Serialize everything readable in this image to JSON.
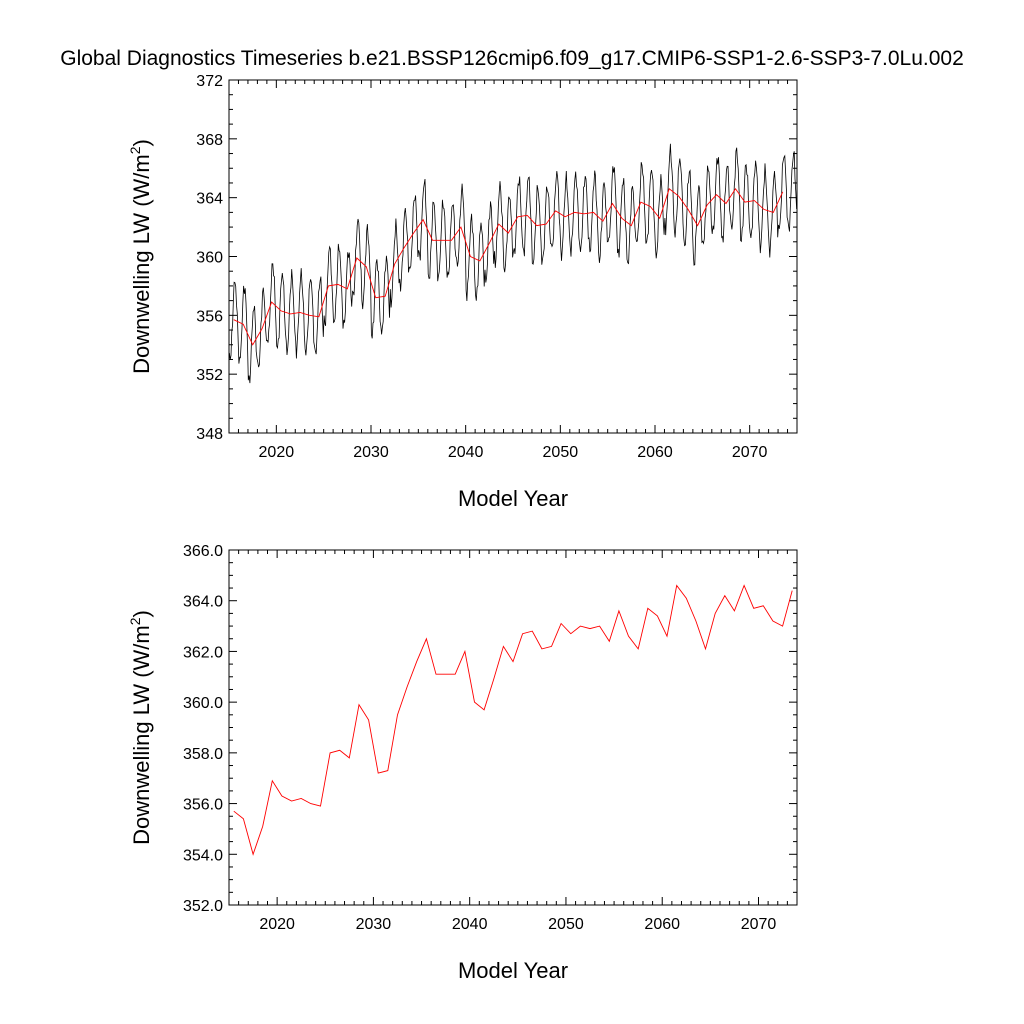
{
  "title": "Global Diagnostics Timeseries b.e21.BSSP126cmip6.f09_g17.CMIP6-SSP1-2.6-SSP3-7.0Lu.002",
  "chart_data": [
    {
      "type": "line",
      "xlabel": "Model Year",
      "ylabel_main": "Downwelling LW (W/m",
      "ylabel_sup": "2",
      "ylabel_close": ")",
      "xlim": [
        2015,
        2075
      ],
      "ylim": [
        348,
        372
      ],
      "xticks": [
        2020,
        2030,
        2040,
        2050,
        2060,
        2070
      ],
      "yticks": [
        "348",
        "352",
        "356",
        "360",
        "364",
        "368",
        "372"
      ],
      "series": [
        {
          "kind": "monthly",
          "color": "#000000",
          "x_start": 2015,
          "x_end": 2075,
          "annual_mean": [
            355.7,
            355.4,
            354.0,
            355.1,
            356.9,
            356.3,
            356.1,
            356.2,
            356.0,
            355.9,
            358.0,
            358.1,
            357.8,
            359.9,
            359.3,
            357.2,
            357.3,
            359.5,
            360.6,
            361.6,
            362.5,
            361.1,
            361.1,
            361.1,
            362.0,
            360.0,
            359.7,
            360.9,
            362.2,
            361.6,
            362.7,
            362.8,
            362.1,
            362.2,
            363.1,
            362.7,
            363.0,
            362.9,
            363.0,
            362.4,
            363.6,
            362.6,
            362.1,
            363.7,
            363.4,
            362.6,
            364.6,
            364.1,
            363.2,
            362.1,
            363.5,
            364.2,
            363.6,
            364.6,
            363.7,
            363.8,
            363.2,
            363.0,
            364.4,
            364.4
          ],
          "amplitude": 2.6
        },
        {
          "kind": "annual",
          "color": "#ff0000",
          "x": [
            2015.5,
            2016.5,
            2017.5,
            2018.5,
            2019.5,
            2020.5,
            2021.5,
            2022.5,
            2023.5,
            2024.5,
            2025.5,
            2026.5,
            2027.5,
            2028.5,
            2029.5,
            2030.5,
            2031.5,
            2032.5,
            2033.5,
            2034.5,
            2035.5,
            2036.5,
            2037.5,
            2038.5,
            2039.5,
            2040.5,
            2041.5,
            2042.5,
            2043.5,
            2044.5,
            2045.5,
            2046.5,
            2047.5,
            2048.5,
            2049.5,
            2050.5,
            2051.5,
            2052.5,
            2053.5,
            2054.5,
            2055.5,
            2056.5,
            2057.5,
            2058.5,
            2059.5,
            2060.5,
            2061.5,
            2062.5,
            2063.5,
            2064.5,
            2065.5,
            2066.5,
            2067.5,
            2068.5,
            2069.5,
            2070.5,
            2071.5,
            2072.5,
            2073.5
          ],
          "y": [
            355.7,
            355.4,
            354.0,
            355.1,
            356.9,
            356.3,
            356.1,
            356.2,
            356.0,
            355.9,
            358.0,
            358.1,
            357.8,
            359.9,
            359.3,
            357.2,
            357.3,
            359.5,
            360.6,
            361.6,
            362.5,
            361.1,
            361.1,
            361.1,
            362.0,
            360.0,
            359.7,
            360.9,
            362.2,
            361.6,
            362.7,
            362.8,
            362.1,
            362.2,
            363.1,
            362.7,
            363.0,
            362.9,
            363.0,
            362.4,
            363.6,
            362.6,
            362.1,
            363.7,
            363.4,
            362.6,
            364.6,
            364.1,
            363.2,
            362.1,
            363.5,
            364.2,
            363.6,
            364.6,
            363.7,
            363.8,
            363.2,
            363.0,
            364.4
          ]
        }
      ]
    },
    {
      "type": "line",
      "xlabel": "Model Year",
      "ylabel_main": "Downwelling LW (W/m",
      "ylabel_sup": "2",
      "ylabel_close": ")",
      "xlim": [
        2015,
        2074
      ],
      "ylim": [
        352,
        366
      ],
      "xticks": [
        2020,
        2030,
        2040,
        2050,
        2060,
        2070
      ],
      "yticks": [
        "352.0",
        "354.0",
        "356.0",
        "358.0",
        "360.0",
        "362.0",
        "364.0",
        "366.0"
      ],
      "series": [
        {
          "kind": "annual",
          "color": "#ff0000",
          "x": [
            2015.5,
            2016.5,
            2017.5,
            2018.5,
            2019.5,
            2020.5,
            2021.5,
            2022.5,
            2023.5,
            2024.5,
            2025.5,
            2026.5,
            2027.5,
            2028.5,
            2029.5,
            2030.5,
            2031.5,
            2032.5,
            2033.5,
            2034.5,
            2035.5,
            2036.5,
            2037.5,
            2038.5,
            2039.5,
            2040.5,
            2041.5,
            2042.5,
            2043.5,
            2044.5,
            2045.5,
            2046.5,
            2047.5,
            2048.5,
            2049.5,
            2050.5,
            2051.5,
            2052.5,
            2053.5,
            2054.5,
            2055.5,
            2056.5,
            2057.5,
            2058.5,
            2059.5,
            2060.5,
            2061.5,
            2062.5,
            2063.5,
            2064.5,
            2065.5,
            2066.5,
            2067.5,
            2068.5,
            2069.5,
            2070.5,
            2071.5,
            2072.5,
            2073.5
          ],
          "y": [
            355.7,
            355.4,
            354.0,
            355.1,
            356.9,
            356.3,
            356.1,
            356.2,
            356.0,
            355.9,
            358.0,
            358.1,
            357.8,
            359.9,
            359.3,
            357.2,
            357.3,
            359.5,
            360.6,
            361.6,
            362.5,
            361.1,
            361.1,
            361.1,
            362.0,
            360.0,
            359.7,
            360.9,
            362.2,
            361.6,
            362.7,
            362.8,
            362.1,
            362.2,
            363.1,
            362.7,
            363.0,
            362.9,
            363.0,
            362.4,
            363.6,
            362.6,
            362.1,
            363.7,
            363.4,
            362.6,
            364.6,
            364.1,
            363.2,
            362.1,
            363.5,
            364.2,
            363.6,
            364.6,
            363.7,
            363.8,
            363.2,
            363.0,
            364.4
          ]
        }
      ]
    }
  ]
}
